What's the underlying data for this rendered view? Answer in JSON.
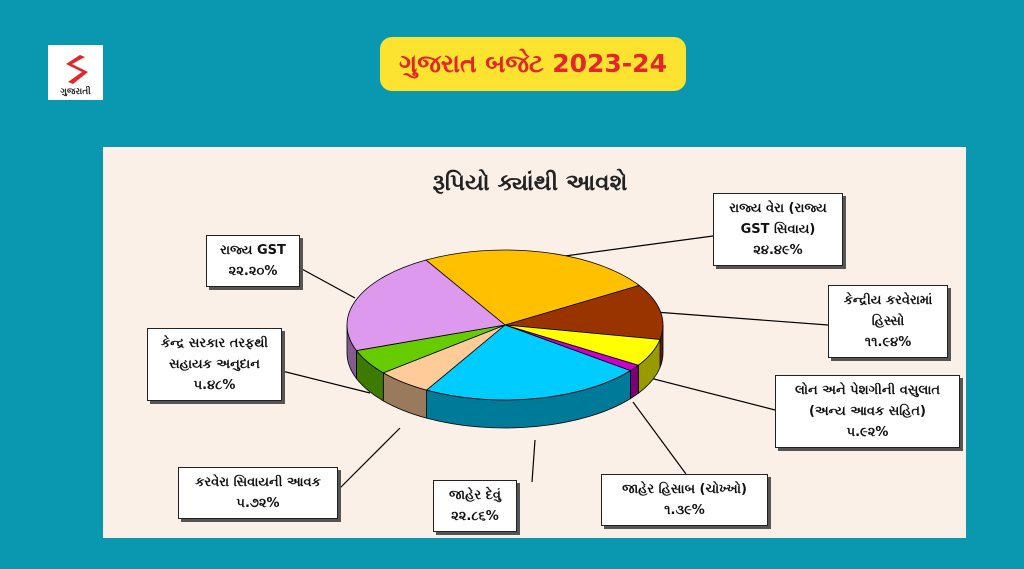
{
  "logo": "ગુજરાતી",
  "header": {
    "title": "ગુજરાત બજેટ  2023-24"
  },
  "chart_data": {
    "type": "pie3d",
    "title": "રૂપિયો ક્યાંથી આવશે",
    "categories": [
      "રાજ્ય વેરા (રાજ્ય GST સિવાય)",
      "કેન્દ્રીય કરવેરામાં હિસ્સો",
      "લોન અને પેશગીની વસુલાત (અન્ય આવક સહિત)",
      "જાહેર હિસાબ (ચોખ્ખો)",
      "જાહેર દેવું",
      "કરવેરા સિવાયની આવક",
      "કેન્દ્ર સરકાર તરફથી સહાયક અનુદાન",
      "રાજ્ય GST"
    ],
    "values": [
      24.49,
      11.94,
      5.92,
      1.39,
      22.86,
      5.72,
      5.48,
      22.2
    ],
    "value_labels": [
      "૨૪.૪૯%",
      "૧૧.૯૪%",
      "૫.૯૨%",
      "૧.૩૯%",
      "૨૨.૮૬%",
      "૫.૭૨%",
      "૫.૪૮%",
      "૨૨.૨૦%"
    ],
    "colors": [
      "#ffc000",
      "#993300",
      "#ffff00",
      "#cc00cc",
      "#00ccff",
      "#ffcc99",
      "#66cc00",
      "#dd99ee"
    ]
  }
}
